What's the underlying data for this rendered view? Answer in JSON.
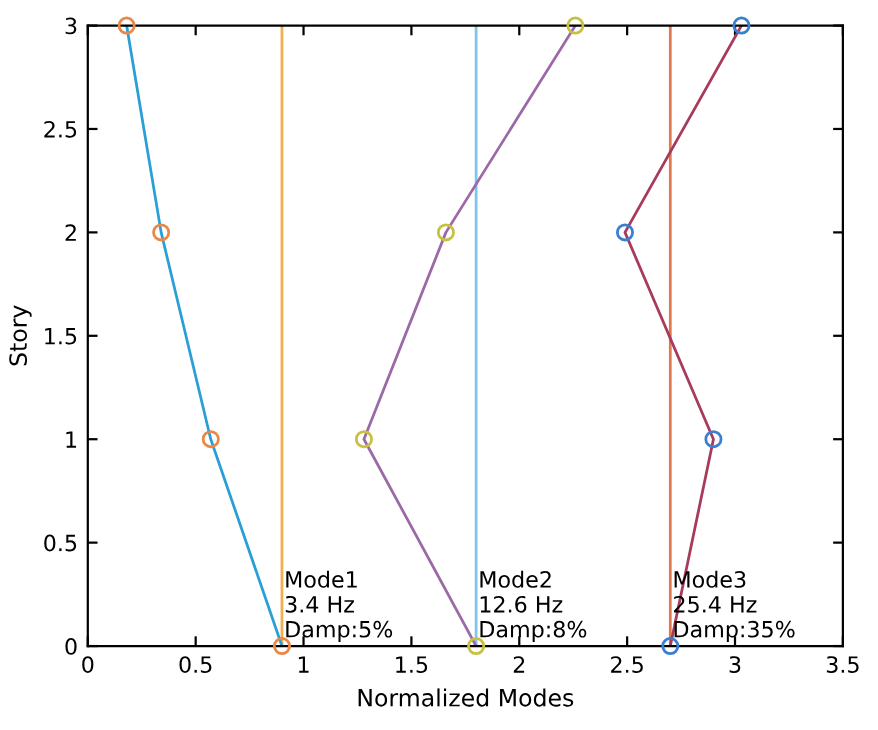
{
  "chart_data": {
    "type": "line",
    "xlabel": "Normalized Modes",
    "ylabel": "Story",
    "xlim": [
      0,
      3.5
    ],
    "xticks": [
      0,
      0.5,
      1,
      1.5,
      2,
      2.5,
      3,
      3.5
    ],
    "ylim": [
      0,
      3
    ],
    "yticks": [
      0,
      0.5,
      1,
      1.5,
      2,
      2.5,
      3
    ],
    "grid": false,
    "legend": false,
    "series": [
      {
        "color": "#2a9fd6",
        "x": [
          0.9,
          0.57,
          0.34,
          0.18
        ],
        "values": [
          0,
          1,
          2,
          3
        ]
      },
      {
        "type": "scatter",
        "marker": "circle",
        "color": "#e8894a",
        "x": [
          0.9,
          0.57,
          0.34,
          0.18
        ],
        "values": [
          0,
          1,
          2,
          3
        ]
      },
      {
        "color": "#9b6aa6",
        "x": [
          1.8,
          1.28,
          1.66,
          2.26
        ],
        "values": [
          0,
          1,
          2,
          3
        ]
      },
      {
        "type": "scatter",
        "marker": "circle",
        "color": "#c8c040",
        "x": [
          1.8,
          1.28,
          1.66,
          2.26
        ],
        "values": [
          0,
          1,
          2,
          3
        ]
      },
      {
        "color": "#a83a5a",
        "x": [
          2.7,
          2.9,
          2.49,
          3.03
        ],
        "values": [
          0,
          1,
          2,
          3
        ]
      },
      {
        "type": "scatter",
        "marker": "circle",
        "color": "#3a7fd0",
        "x": [
          2.7,
          2.9,
          2.49,
          3.03
        ],
        "values": [
          0,
          1,
          2,
          3
        ]
      }
    ],
    "ref_lines": [
      {
        "axis": "x",
        "value": 0.9,
        "label": "Mode1\n3.4 Hz\nDamp:5%",
        "color": "#f0b050"
      },
      {
        "axis": "x",
        "value": 1.8,
        "label": "Mode2\n12.6 Hz\nDamp:8%",
        "color": "#7ec6ea"
      },
      {
        "axis": "x",
        "value": 2.7,
        "label": "Mode3\n25.4 Hz\nDamp:35%",
        "color": "#e07850"
      }
    ]
  }
}
